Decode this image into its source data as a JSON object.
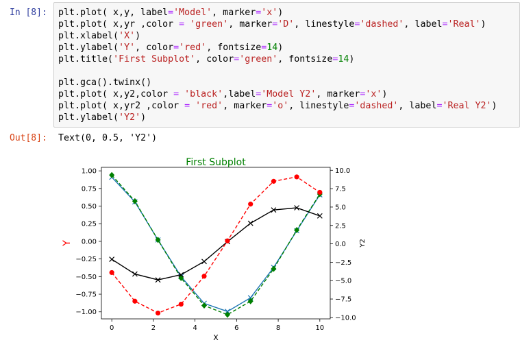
{
  "input_prompt": "In [8]:",
  "output_prompt": "Out[8]:",
  "code_lines": [
    [
      [
        "t",
        "plt.plot( x,y, label"
      ],
      [
        "e",
        "="
      ],
      [
        "s",
        "'Model'"
      ],
      [
        "t",
        ", marker"
      ],
      [
        "e",
        "="
      ],
      [
        "s",
        "'x'"
      ],
      [
        "t",
        ")"
      ]
    ],
    [
      [
        "t",
        "plt.plot( x,yr ,color "
      ],
      [
        "e",
        "="
      ],
      [
        "t",
        " "
      ],
      [
        "s",
        "'green'"
      ],
      [
        "t",
        ", marker"
      ],
      [
        "e",
        "="
      ],
      [
        "s",
        "'D'"
      ],
      [
        "t",
        ", linestyle"
      ],
      [
        "e",
        "="
      ],
      [
        "s",
        "'dashed'"
      ],
      [
        "t",
        ", label"
      ],
      [
        "e",
        "="
      ],
      [
        "s",
        "'Real'"
      ],
      [
        "t",
        ")"
      ]
    ],
    [
      [
        "t",
        "plt.xlabel("
      ],
      [
        "s",
        "'X'"
      ],
      [
        "t",
        ")"
      ]
    ],
    [
      [
        "t",
        "plt.ylabel("
      ],
      [
        "s",
        "'Y'"
      ],
      [
        "t",
        ", color"
      ],
      [
        "e",
        "="
      ],
      [
        "s",
        "'red'"
      ],
      [
        "t",
        ", fontsize"
      ],
      [
        "e",
        "="
      ],
      [
        "n",
        "14"
      ],
      [
        "t",
        ")"
      ]
    ],
    [
      [
        "t",
        "plt.title("
      ],
      [
        "s",
        "'First Subplot'"
      ],
      [
        "t",
        ", color"
      ],
      [
        "e",
        "="
      ],
      [
        "s",
        "'green'"
      ],
      [
        "t",
        ", fontsize"
      ],
      [
        "e",
        "="
      ],
      [
        "n",
        "14"
      ],
      [
        "t",
        ")"
      ]
    ],
    [
      [
        "t",
        ""
      ]
    ],
    [
      [
        "t",
        "plt.gca().twinx()"
      ]
    ],
    [
      [
        "t",
        "plt.plot( x,y2,color "
      ],
      [
        "e",
        "="
      ],
      [
        "t",
        " "
      ],
      [
        "s",
        "'black'"
      ],
      [
        "t",
        ",label"
      ],
      [
        "e",
        "="
      ],
      [
        "s",
        "'Model Y2'"
      ],
      [
        "t",
        ", marker"
      ],
      [
        "e",
        "="
      ],
      [
        "s",
        "'x'"
      ],
      [
        "t",
        ")"
      ]
    ],
    [
      [
        "t",
        "plt.plot( x,yr2 ,color "
      ],
      [
        "e",
        "="
      ],
      [
        "t",
        " "
      ],
      [
        "s",
        "'red'"
      ],
      [
        "t",
        ", marker"
      ],
      [
        "e",
        "="
      ],
      [
        "s",
        "'o'"
      ],
      [
        "t",
        ", linestyle"
      ],
      [
        "e",
        "="
      ],
      [
        "s",
        "'dashed'"
      ],
      [
        "t",
        ", label"
      ],
      [
        "e",
        "="
      ],
      [
        "s",
        "'Real Y2'"
      ],
      [
        "t",
        ")"
      ]
    ],
    [
      [
        "t",
        "plt.ylabel("
      ],
      [
        "s",
        "'Y2'"
      ],
      [
        "t",
        ")"
      ]
    ]
  ],
  "output_text": "Text(0, 0.5, 'Y2')",
  "colors": {
    "prompt_in": "#303F9F",
    "prompt_out": "#D84315",
    "string": "#BA2121",
    "number": "#008000",
    "operator": "#AA22FF",
    "model_line": "#1f77b4",
    "real_line": "green",
    "model_y2": "black",
    "real_y2": "red"
  },
  "chart_data": {
    "type": "line",
    "title": "First Subplot",
    "title_color": "green",
    "xlabel": "X",
    "ylabel": "Y",
    "ylabel_color": "red",
    "y2label": "Y2",
    "xlim": [
      -0.5,
      10.5
    ],
    "ylim": [
      -1.1,
      1.05
    ],
    "y2lim": [
      -10.2,
      10.4
    ],
    "xticks": [
      0,
      2,
      4,
      6,
      8,
      10
    ],
    "yticks": [
      1.0,
      0.75,
      0.5,
      0.25,
      0.0,
      -0.25,
      -0.5,
      -0.75,
      -1.0
    ],
    "ytick_labels": [
      "1.00",
      "0.75",
      "0.50",
      "0.25",
      "0.00",
      "−0.25",
      "−0.50",
      "−0.75",
      "−1.00"
    ],
    "y2ticks": [
      10.0,
      7.5,
      5.0,
      2.5,
      0.0,
      -2.5,
      -5.0,
      -7.5,
      -10.0
    ],
    "y2tick_labels": [
      "10.0",
      "7.5",
      "5.0",
      "2.5",
      "0.0",
      "−2.5",
      "−5.0",
      "−7.5",
      "−10.0"
    ],
    "x": [
      0,
      1.11,
      2.22,
      3.33,
      4.44,
      5.56,
      6.67,
      7.78,
      8.89,
      10
    ],
    "series": [
      {
        "axis": "left",
        "color": "#1f77b4",
        "dashed": false,
        "marker": "x",
        "marker_color": "#1f77b4",
        "values": [
          0.91,
          0.56,
          0.02,
          -0.5,
          -0.88,
          -0.995,
          -0.8,
          -0.37,
          0.15,
          0.66
        ]
      },
      {
        "axis": "left",
        "color": "green",
        "dashed": true,
        "marker": "D",
        "marker_color": "green",
        "values": [
          0.94,
          0.57,
          0.02,
          -0.52,
          -0.91,
          -1.04,
          -0.85,
          -0.39,
          0.16,
          0.67
        ]
      },
      {
        "axis": "right",
        "color": "black",
        "dashed": false,
        "marker": "x",
        "marker_color": "black",
        "values": [
          -2.1,
          -4.1,
          -4.9,
          -4.2,
          -2.4,
          0.3,
          2.8,
          4.6,
          4.9,
          3.8
        ]
      },
      {
        "axis": "right",
        "color": "red",
        "dashed": true,
        "marker": "o",
        "marker_color": "red",
        "values": [
          -3.9,
          -7.8,
          -9.4,
          -8.2,
          -4.4,
          0.4,
          5.4,
          8.5,
          9.1,
          7.0
        ]
      }
    ]
  }
}
